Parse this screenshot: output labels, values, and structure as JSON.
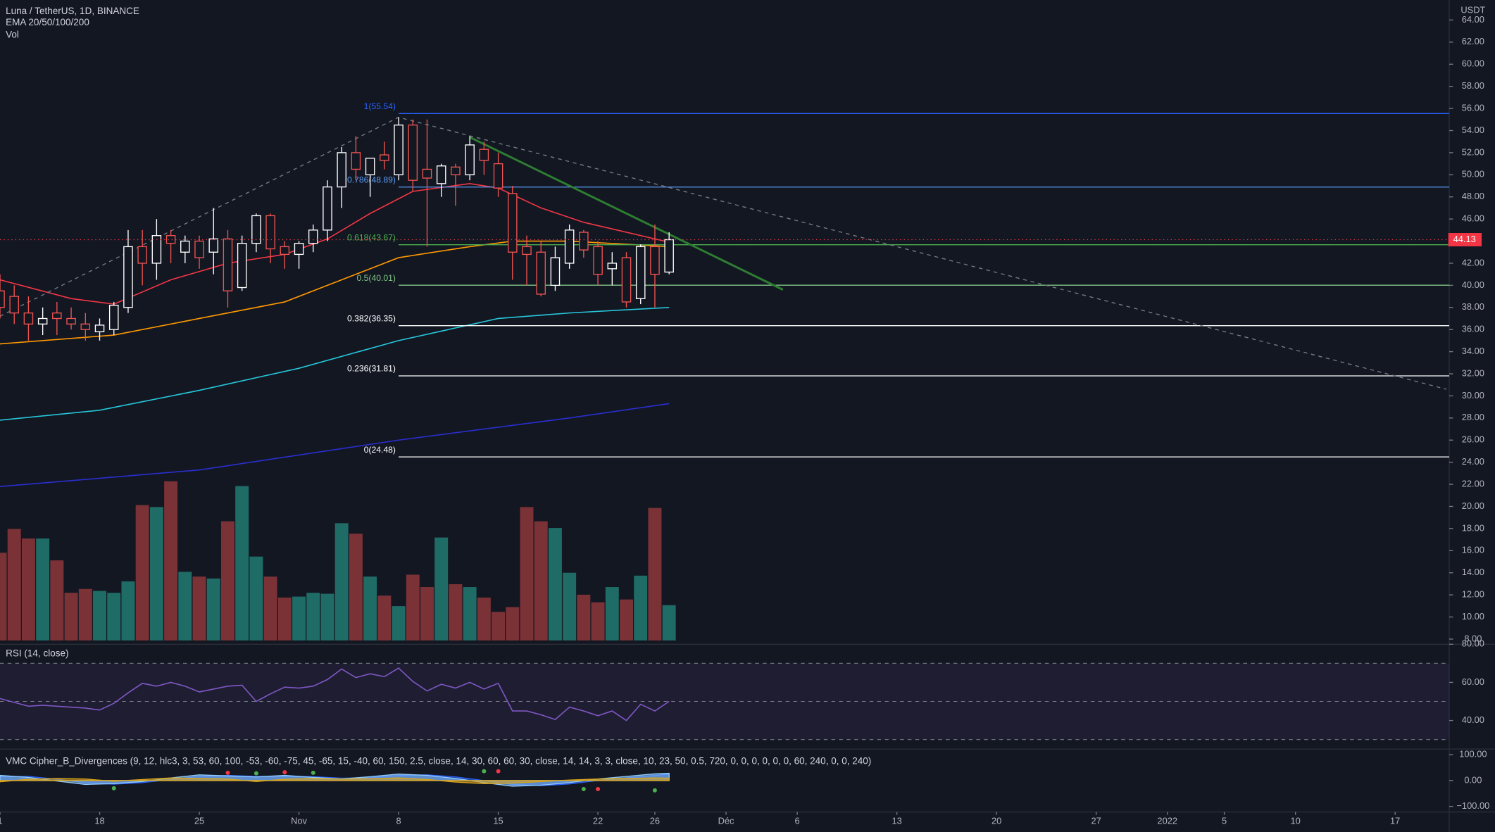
{
  "chart_data": [
    {
      "type": "candlestick",
      "title": "Luna / TetherUS, 1D, BINANCE",
      "indicator_label": "EMA 20/50/100/200",
      "volume_label": "Vol",
      "currency": "USDT",
      "x": [
        0,
        1,
        2,
        3,
        4,
        5,
        6,
        7,
        8,
        9,
        10,
        11,
        12,
        13,
        14,
        15,
        16,
        17,
        18,
        19,
        20,
        21,
        22,
        23,
        24,
        25,
        26,
        27,
        28,
        29,
        30,
        31,
        32,
        33,
        34,
        35,
        36,
        37,
        38,
        39,
        40,
        41,
        42,
        43,
        44,
        45,
        46,
        47
      ],
      "open": [
        39.5,
        39,
        37.5,
        36.5,
        37.5,
        37,
        36.5,
        35.8,
        36,
        38,
        43.5,
        42,
        44.5,
        43,
        44,
        43,
        44.2,
        39.8,
        43.8,
        46.3,
        43.5,
        42.8,
        43.8,
        45,
        48.9,
        52,
        50,
        51.8,
        50,
        54.5,
        50.5,
        49.2,
        50.7,
        50,
        52.3,
        51,
        48.3,
        43.5,
        43,
        40,
        42,
        44.8,
        43.5,
        41.5,
        42.5,
        38.8,
        43.5,
        41.2
      ],
      "high": [
        41,
        40,
        39,
        38,
        38.5,
        38,
        37.5,
        37,
        38.5,
        45,
        45,
        46,
        45,
        44.5,
        44.5,
        47,
        45,
        44.5,
        46.5,
        46.5,
        44,
        44,
        45.5,
        49.5,
        52.5,
        53.5,
        51.5,
        53,
        55.2,
        55,
        55,
        51,
        51,
        53.5,
        53,
        52,
        49,
        44.5,
        44,
        43.5,
        45.5,
        45,
        44,
        43,
        43,
        43.7,
        45.5,
        44.8
      ],
      "low": [
        37,
        36.5,
        35,
        35.5,
        35.5,
        36,
        35,
        35,
        35.5,
        37.5,
        40,
        40.5,
        42,
        42,
        41.5,
        41,
        38,
        39.5,
        43,
        42,
        41.5,
        41.5,
        43,
        44,
        47,
        49.5,
        48,
        50.5,
        49.5,
        48.5,
        43.5,
        48,
        47.2,
        49.5,
        50,
        48,
        40.5,
        40,
        39,
        39.5,
        41.5,
        42.5,
        40,
        40,
        38,
        38.3,
        38,
        41
      ],
      "close": [
        38,
        37.5,
        36.5,
        37,
        37,
        36.5,
        36,
        36.4,
        38.2,
        43.5,
        42,
        44.5,
        43.8,
        44,
        42.5,
        44.2,
        39.5,
        43.8,
        46.3,
        43.3,
        42.8,
        43.8,
        45,
        48.9,
        52,
        50.5,
        51.5,
        51.3,
        54.5,
        49.5,
        49.7,
        50.8,
        50,
        52.7,
        51.3,
        48.8,
        43,
        42.8,
        39.2,
        42.5,
        45,
        43.2,
        41,
        42,
        38.5,
        43.5,
        41,
        44.13
      ],
      "volume": [
        92,
        117,
        107,
        107,
        84,
        50,
        54,
        52,
        50,
        62,
        142,
        140,
        167,
        72,
        67,
        65,
        125,
        162,
        88,
        67,
        45,
        46,
        50,
        49,
        123,
        112,
        67,
        47,
        36,
        69,
        56,
        108,
        59,
        56,
        45,
        30,
        35,
        140,
        125,
        118,
        71,
        48,
        40,
        56,
        43,
        68,
        139,
        37
      ],
      "up_color": "#ffffff",
      "down_color": "#ef5350",
      "volume_up_color": "#1f6b66",
      "volume_down_color": "#7b3236",
      "ema": [
        {
          "color": "#f23645",
          "x": [
            0,
            5,
            8,
            12,
            16,
            20,
            23,
            26,
            29,
            33,
            35,
            38,
            41,
            44,
            47
          ],
          "values": [
            40.5,
            38.8,
            38.3,
            40.5,
            42,
            42.8,
            44.2,
            46.5,
            48.5,
            49.2,
            48.8,
            47,
            45.7,
            44.8,
            43.9
          ]
        },
        {
          "color": "#ff9800",
          "x": [
            0,
            8,
            14,
            20,
            24,
            28,
            33,
            36,
            40,
            47
          ],
          "values": [
            34.7,
            35.5,
            37,
            38.5,
            40.5,
            42.5,
            43.5,
            44,
            44,
            43.5
          ]
        },
        {
          "color": "#26c6da",
          "x": [
            0,
            7,
            14,
            21,
            28,
            35,
            40,
            47
          ],
          "values": [
            27.8,
            28.7,
            30.5,
            32.5,
            35,
            37,
            37.5,
            38
          ]
        },
        {
          "color": "#2a2ed0",
          "x": [
            0,
            14,
            28,
            40,
            47
          ],
          "values": [
            21.8,
            23.3,
            26,
            28,
            29.3
          ]
        }
      ],
      "fib_start": 28,
      "fib_levels": [
        {
          "label": "1(55.54)",
          "value": 55.54,
          "color": "#2962ff"
        },
        {
          "label": "0.786(48.89)",
          "value": 48.89,
          "color": "#5b9cf6"
        },
        {
          "label": "0.618(43.67)",
          "value": 43.67,
          "color": "#4caf50"
        },
        {
          "label": "0.5(40.01)",
          "value": 40.01,
          "color": "#81c784"
        },
        {
          "label": "0.382(36.35)",
          "value": 36.35,
          "color": "#ffffff"
        },
        {
          "label": "0.236(31.81)",
          "value": 31.81,
          "color": "#ffffff"
        },
        {
          "label": "0(24.48)",
          "value": 24.48,
          "color": "#ffffff"
        }
      ],
      "trend_lines": [
        {
          "color": "#787b86",
          "dashed": true,
          "x": [
            0,
            28,
            101.6
          ],
          "values": [
            37.2,
            55.2,
            30.6
          ]
        },
        {
          "color": "#2e7d32",
          "dashed": false,
          "x": [
            33,
            55
          ],
          "values": [
            53.4,
            39.6
          ]
        }
      ],
      "last_price": 44.13,
      "last_price_color": "#f23645",
      "xlim": [
        0,
        101.8
      ],
      "xticks": [
        {
          "value": 0,
          "label": "1"
        },
        {
          "value": 7,
          "label": "18"
        },
        {
          "value": 14,
          "label": "25"
        },
        {
          "value": 21,
          "label": "Nov"
        },
        {
          "value": 28,
          "label": "8"
        },
        {
          "value": 35,
          "label": "15"
        },
        {
          "value": 42,
          "label": "22"
        },
        {
          "value": 46,
          "label": "26"
        },
        {
          "value": 51,
          "label": "Déc"
        },
        {
          "value": 56,
          "label": "6"
        },
        {
          "value": 63,
          "label": "13"
        },
        {
          "value": 70,
          "label": "20"
        },
        {
          "value": 77,
          "label": "27"
        },
        {
          "value": 82,
          "label": "2022"
        },
        {
          "value": 86,
          "label": "5"
        },
        {
          "value": 91,
          "label": "10"
        },
        {
          "value": 98,
          "label": "17"
        }
      ],
      "ylim": [
        7.62,
        65.81
      ],
      "yticks": [
        {
          "value": 64,
          "label": "64.00"
        },
        {
          "value": 62,
          "label": "62.00"
        },
        {
          "value": 60,
          "label": "60.00"
        },
        {
          "value": 58,
          "label": "58.00"
        },
        {
          "value": 56,
          "label": "56.00"
        },
        {
          "value": 54,
          "label": "54.00"
        },
        {
          "value": 52,
          "label": "52.00"
        },
        {
          "value": 50,
          "label": "50.00"
        },
        {
          "value": 48,
          "label": "48.00"
        },
        {
          "value": 46,
          "label": "46.00"
        },
        {
          "value": 42,
          "label": "42.00"
        },
        {
          "value": 40,
          "label": "40.00"
        },
        {
          "value": 38,
          "label": "38.00"
        },
        {
          "value": 36,
          "label": "36.00"
        },
        {
          "value": 34,
          "label": "34.00"
        },
        {
          "value": 32,
          "label": "32.00"
        },
        {
          "value": 30,
          "label": "30.00"
        },
        {
          "value": 28,
          "label": "28.00"
        },
        {
          "value": 26,
          "label": "26.00"
        },
        {
          "value": 24,
          "label": "24.00"
        },
        {
          "value": 22,
          "label": "22.00"
        },
        {
          "value": 20,
          "label": "20.00"
        },
        {
          "value": 18,
          "label": "18.00"
        },
        {
          "value": 16,
          "label": "16.00"
        },
        {
          "value": 14,
          "label": "14.00"
        },
        {
          "value": 12,
          "label": "12.00"
        },
        {
          "value": 10,
          "label": "10.00"
        },
        {
          "value": 8,
          "label": "8.00"
        }
      ]
    },
    {
      "type": "line",
      "title": "RSI (14, close)",
      "color": "#7e57c2",
      "x": [
        0,
        1,
        2,
        3,
        4,
        5,
        6,
        7,
        8,
        9,
        10,
        11,
        12,
        13,
        14,
        15,
        16,
        17,
        18,
        19,
        20,
        21,
        22,
        23,
        24,
        25,
        26,
        27,
        28,
        29,
        30,
        31,
        32,
        33,
        34,
        35,
        36,
        37,
        38,
        39,
        40,
        41,
        42,
        43,
        44,
        45,
        46,
        47
      ],
      "values": [
        51.5,
        49.5,
        47.5,
        48,
        47.5,
        47,
        46.5,
        45.5,
        49,
        54.5,
        59.5,
        58,
        60,
        58,
        55,
        56.5,
        58,
        58.5,
        50,
        54,
        57.5,
        57,
        58,
        61.5,
        67,
        62.5,
        64.5,
        63,
        67.5,
        60.5,
        55.5,
        59,
        57,
        60,
        56.5,
        59.5,
        45,
        45,
        43,
        40.5,
        47,
        45,
        42.5,
        45,
        40,
        48.5,
        45,
        50
      ],
      "band": [
        30,
        50,
        70
      ],
      "ylim": [
        25,
        80
      ],
      "yticks": [
        {
          "value": 40,
          "label": "40.00"
        },
        {
          "value": 60,
          "label": "60.00"
        },
        {
          "value": 80,
          "label": "80.00"
        }
      ]
    },
    {
      "type": "area",
      "title": "VMC Cipher_B_Divergences (9, 12, hlc3, 3, 53, 60, 100, -53, -60, -75, 45, -65, 15, -40, 60, 150, 2.5, close, 14, 30, 60, 60, 30, close, 14, 14, 3, 3, close, 10, 23, 50, 0.5, 720, 0, 0, 0, 0, 0, 0, 60, 240, 0, 0, 240)",
      "x": [
        0,
        2,
        4,
        6,
        8,
        10,
        12,
        14,
        16,
        18,
        20,
        22,
        24,
        26,
        28,
        30,
        32,
        34,
        36,
        38,
        40,
        42,
        44,
        46,
        47
      ],
      "series": [
        {
          "color": "#2962ff",
          "values": [
            15,
            16,
            5,
            -8,
            -14,
            -8,
            4,
            16,
            20,
            16,
            17,
            15,
            9,
            11,
            20,
            22,
            14,
            0,
            -15,
            -20,
            -13,
            0,
            10,
            20,
            25
          ]
        },
        {
          "color": "#90caf9",
          "values": [
            20,
            12,
            -2,
            -15,
            -12,
            -4,
            10,
            22,
            18,
            14,
            20,
            12,
            6,
            15,
            25,
            20,
            8,
            -8,
            -22,
            -18,
            -8,
            6,
            16,
            26,
            28
          ]
        },
        {
          "color": "#d8a318",
          "values": [
            -5,
            5,
            8,
            6,
            -3,
            4,
            10,
            8,
            6,
            -4,
            5,
            8,
            6,
            7,
            10,
            4,
            -6,
            -12,
            -10,
            -4,
            2,
            6,
            8,
            10,
            9
          ]
        }
      ],
      "dots": [
        {
          "x": 8,
          "value": -30,
          "color": "#4caf50"
        },
        {
          "x": 16,
          "value": 30,
          "color": "#f23645"
        },
        {
          "x": 18,
          "value": 28,
          "color": "#4caf50"
        },
        {
          "x": 20,
          "value": 32,
          "color": "#f23645"
        },
        {
          "x": 22,
          "value": 30,
          "color": "#4caf50"
        },
        {
          "x": 34,
          "value": 36,
          "color": "#4caf50"
        },
        {
          "x": 35,
          "value": 36,
          "color": "#f23645"
        },
        {
          "x": 41,
          "value": -33,
          "color": "#4caf50"
        },
        {
          "x": 42,
          "value": -33,
          "color": "#f23645"
        },
        {
          "x": 46,
          "value": -38,
          "color": "#4caf50"
        }
      ],
      "ylim": [
        -121.6,
        121.6
      ],
      "yticks": [
        {
          "value": 100,
          "label": "100.00"
        },
        {
          "value": 0,
          "label": "0.00"
        },
        {
          "value": -100,
          "label": "−100.00"
        }
      ]
    }
  ]
}
